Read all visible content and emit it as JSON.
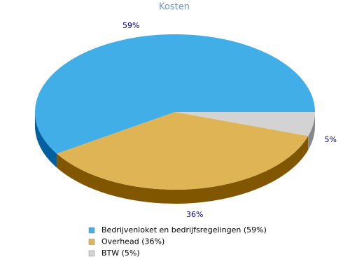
{
  "chart_data": {
    "type": "pie",
    "title": "Kosten",
    "categories": [
      "Bedrijvenloket en bedrijfsregelingen (59%)",
      "Overhead (36%)",
      "BTW (5%)"
    ],
    "values": [
      59,
      36,
      5
    ],
    "value_labels": [
      "59%",
      "36%",
      "5%"
    ],
    "colors": [
      "#42aee8",
      "#deb455",
      "#d3d3d3"
    ],
    "side_colors": [
      "#005f9e",
      "#805700",
      "#888888"
    ]
  }
}
